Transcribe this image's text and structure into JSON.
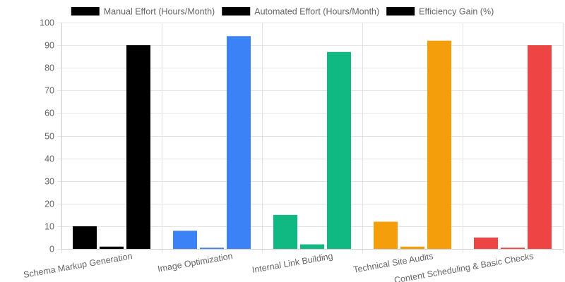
{
  "chart_data": {
    "type": "bar",
    "categories": [
      "Schema Markup Generation",
      "Image Optimization",
      "Internal Link Building",
      "Technical Site Audits",
      "Content Scheduling & Basic Checks"
    ],
    "category_colors": [
      "#000000",
      "#3b82f6",
      "#10b981",
      "#f59e0b",
      "#ef4444"
    ],
    "series": [
      {
        "name": "Manual Effort (Hours/Month)",
        "values": [
          10,
          8,
          15,
          12,
          5
        ]
      },
      {
        "name": "Automated Effort (Hours/Month)",
        "values": [
          1,
          0.5,
          2,
          1,
          0.5
        ]
      },
      {
        "name": "Efficiency Gain (%)",
        "values": [
          90,
          94,
          87,
          92,
          90
        ]
      }
    ],
    "legend_color": "#000000",
    "ylim": [
      0,
      100
    ],
    "yticks": [
      0,
      10,
      20,
      30,
      40,
      50,
      60,
      70,
      80,
      90,
      100
    ],
    "grid": true,
    "legend_position": "top"
  }
}
